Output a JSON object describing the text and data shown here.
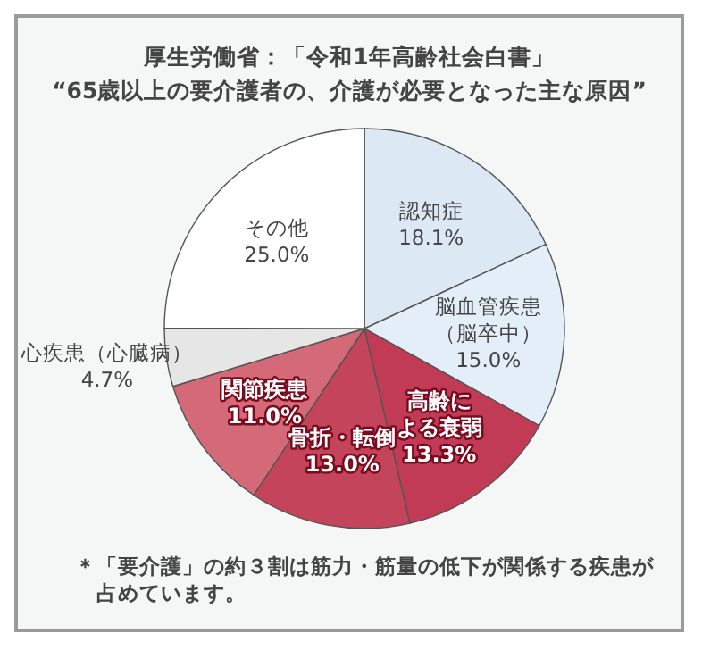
{
  "chart_data": {
    "type": "pie",
    "title": "厚生労働省：「令和1年高齢社会白書」",
    "subtitle": "“65歳以上の要介護者の、介護が必要となった主な原因”",
    "categories": [
      "認知症",
      "脳血管疾患（脳卒中）",
      "高齢による衰弱",
      "骨折・転倒",
      "関節疾患",
      "心疾患（心臓病）",
      "その他"
    ],
    "values": [
      18.1,
      15.0,
      13.3,
      13.0,
      11.0,
      4.7,
      25.0
    ],
    "colors": [
      "#dce8f3",
      "#e4eef8",
      "#c13a56",
      "#c4445c",
      "#d46a78",
      "#e6e6e6",
      "#ffffff"
    ],
    "value_labels": [
      "18.1%",
      "15.0%",
      "13.3%",
      "13.0%",
      "11.0%",
      "4.7%",
      "25.0%"
    ],
    "annotations": [
      "＊「要介護」の約３割は筋力・筋量の低下が関係する疾患が占めています。"
    ],
    "legend": false
  }
}
